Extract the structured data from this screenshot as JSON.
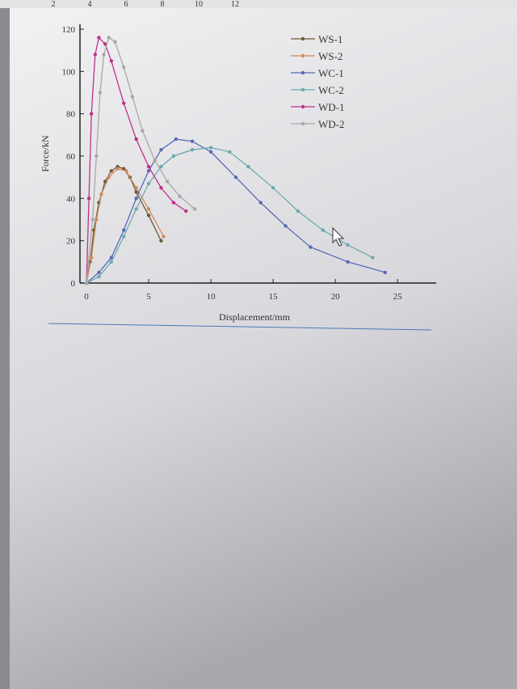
{
  "ruler": {
    "labels": [
      "2",
      "4",
      "6",
      "8",
      "10",
      "12"
    ]
  },
  "chart_data": {
    "type": "line",
    "x_label": "Displacement/mm",
    "y_label": "Force/kN",
    "xlim": [
      0,
      27
    ],
    "ylim": [
      0,
      120
    ],
    "xticks": [
      0,
      5,
      10,
      15,
      20,
      25
    ],
    "yticks": [
      0,
      20,
      40,
      60,
      80,
      100,
      120
    ],
    "legend": "upper right",
    "series": [
      {
        "name": "WS-1",
        "color": "#6b5a3a",
        "x": [
          0,
          0.3,
          0.6,
          1,
          1.5,
          2,
          2.5,
          3,
          3.5,
          4,
          5,
          6
        ],
        "values": [
          0,
          10,
          25,
          38,
          48,
          53,
          55,
          54,
          50,
          43,
          32,
          20
        ]
      },
      {
        "name": "WS-2",
        "color": "#d08a5a",
        "x": [
          0,
          0.4,
          0.8,
          1.2,
          1.8,
          2.5,
          3.2,
          4,
          5,
          6.2
        ],
        "values": [
          0,
          12,
          30,
          42,
          50,
          54,
          53,
          45,
          35,
          22
        ]
      },
      {
        "name": "WC-1",
        "color": "#5a6ab8",
        "x": [
          0,
          1,
          2,
          3,
          4,
          5,
          6,
          7.2,
          8.5,
          10,
          12,
          14,
          16,
          18,
          21,
          24
        ],
        "values": [
          0,
          5,
          12,
          25,
          40,
          53,
          63,
          68,
          67,
          62,
          50,
          38,
          27,
          17,
          10,
          5
        ]
      },
      {
        "name": "WC-2",
        "color": "#6aaab0",
        "x": [
          0,
          1,
          2,
          3,
          4,
          5,
          6,
          7,
          8.5,
          10,
          11.5,
          13,
          15,
          17,
          19,
          21,
          23
        ],
        "values": [
          0,
          3,
          10,
          22,
          35,
          47,
          55,
          60,
          63,
          64,
          62,
          55,
          45,
          34,
          25,
          18,
          12
        ]
      },
      {
        "name": "WD-1",
        "color": "#c0308a",
        "x": [
          0,
          0.2,
          0.4,
          0.7,
          1,
          1.5,
          2,
          3,
          4,
          5,
          6,
          7,
          8
        ],
        "values": [
          0,
          40,
          80,
          108,
          116,
          113,
          105,
          85,
          68,
          55,
          45,
          38,
          34
        ]
      },
      {
        "name": "WD-2",
        "color": "#a8a8a8",
        "x": [
          0,
          0.5,
          0.8,
          1.1,
          1.4,
          1.8,
          2.3,
          3,
          3.7,
          4.5,
          5.5,
          6.5,
          7.5,
          8.7
        ],
        "values": [
          0,
          30,
          60,
          90,
          108,
          116,
          114,
          102,
          88,
          72,
          58,
          48,
          41,
          35
        ]
      }
    ]
  }
}
